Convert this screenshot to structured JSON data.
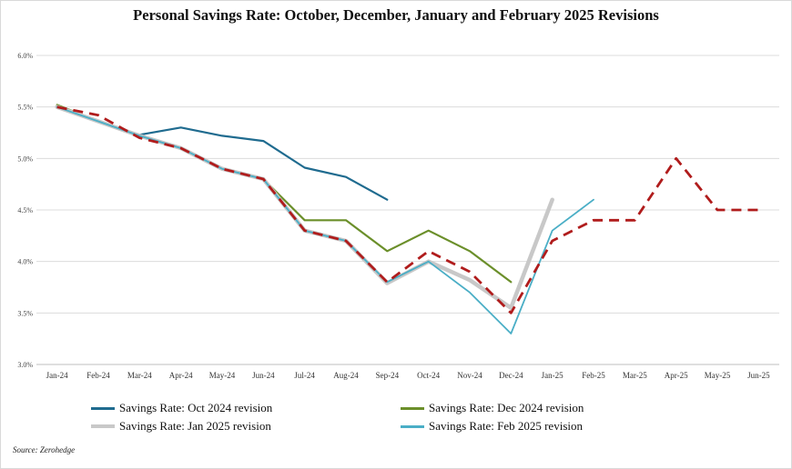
{
  "chart_data": {
    "type": "line",
    "title": "Personal Savings Rate: October, December, January and February 2025 Revisions",
    "x": [
      "Jan-24",
      "Feb-24",
      "Mar-24",
      "Apr-24",
      "May-24",
      "Jun-24",
      "Jul-24",
      "Aug-24",
      "Sep-24",
      "Oct-24",
      "Nov-24",
      "Dec-24",
      "Jan-25",
      "Feb-25",
      "Mar-25",
      "Apr-25",
      "May-25",
      "Jun-25"
    ],
    "y_ticks": [
      "3.0%",
      "3.5%",
      "4.0%",
      "4.5%",
      "5.0%",
      "5.5%",
      "6.0%"
    ],
    "ylim": [
      3.0,
      6.0
    ],
    "xlabel": "",
    "ylabel": "",
    "grid": true,
    "legend_position": "bottom",
    "series": [
      {
        "name": "Savings Rate: Oct 2024 revision",
        "color": "#1f6b8f",
        "width": 2.2,
        "dashed": false,
        "values": [
          5.5,
          5.36,
          5.23,
          5.3,
          5.22,
          5.17,
          4.91,
          4.82,
          4.6,
          null,
          null,
          null,
          null,
          null,
          null,
          null,
          null,
          null
        ]
      },
      {
        "name": "Savings Rate: Dec 2024 revision",
        "color": "#6b8f2a",
        "width": 2.2,
        "dashed": false,
        "values": [
          5.52,
          5.36,
          5.22,
          5.1,
          4.9,
          4.8,
          4.4,
          4.4,
          4.1,
          4.3,
          4.1,
          3.8,
          null,
          null,
          null,
          null,
          null,
          null
        ]
      },
      {
        "name": "Savings Rate: Jan 2025 revision",
        "color": "#c8c8c8",
        "width": 4.5,
        "dashed": false,
        "values": [
          5.5,
          5.36,
          5.22,
          5.1,
          4.9,
          4.8,
          4.3,
          4.2,
          3.79,
          4.0,
          3.82,
          3.55,
          4.6,
          null,
          null,
          null,
          null,
          null
        ]
      },
      {
        "name": "Savings Rate: Feb 2025 revision",
        "color": "#4aaec6",
        "width": 1.8,
        "dashed": false,
        "values": [
          5.5,
          5.36,
          5.22,
          5.1,
          4.9,
          4.8,
          4.3,
          4.2,
          3.8,
          4.0,
          3.7,
          3.3,
          4.3,
          4.6,
          null,
          null,
          null,
          null
        ]
      },
      {
        "name": "",
        "color": "#b01c1c",
        "width": 2.8,
        "dashed": true,
        "values": [
          5.5,
          5.42,
          5.2,
          5.1,
          4.9,
          4.8,
          4.3,
          4.2,
          3.8,
          4.1,
          3.9,
          3.5,
          4.2,
          4.4,
          4.4,
          5.0,
          4.5,
          4.5
        ]
      }
    ]
  },
  "legend": [
    {
      "label": "Savings Rate: Oct 2024 revision",
      "color": "#1f6b8f"
    },
    {
      "label": "Savings Rate: Dec 2024 revision",
      "color": "#6b8f2a"
    },
    {
      "label": "Savings Rate: Jan 2025 revision",
      "color": "#c8c8c8"
    },
    {
      "label": "Savings Rate: Feb 2025 revision",
      "color": "#4aaec6"
    }
  ],
  "source": "Source: Zerohedge"
}
